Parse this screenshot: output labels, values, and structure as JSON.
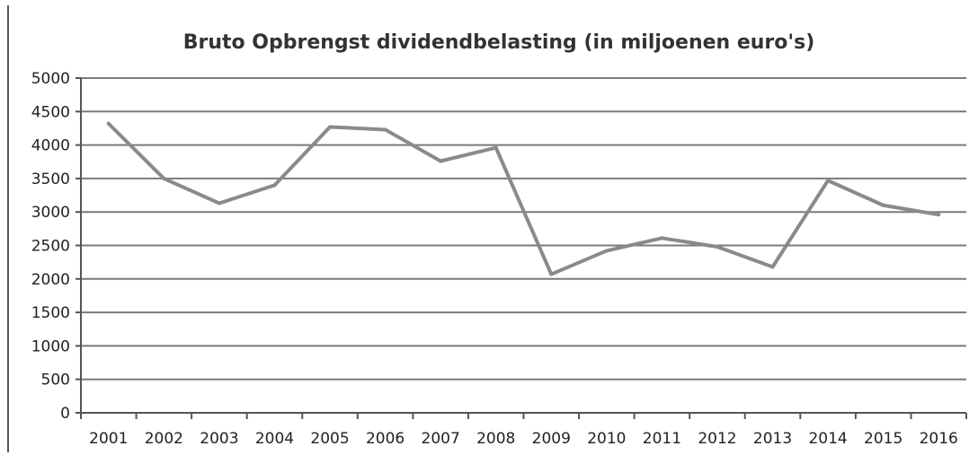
{
  "chart_data": {
    "type": "line",
    "title": "Bruto Opbrengst dividendbelasting (in miljoenen euro's)",
    "xlabel": "",
    "ylabel": "",
    "ylim": [
      0,
      5000
    ],
    "y_ticks": [
      0,
      500,
      1000,
      1500,
      2000,
      2500,
      3000,
      3500,
      4000,
      4500,
      5000
    ],
    "categories": [
      "2001",
      "2002",
      "2003",
      "2004",
      "2005",
      "2006",
      "2007",
      "2008",
      "2009",
      "2010",
      "2011",
      "2012",
      "2013",
      "2014",
      "2015",
      "2016"
    ],
    "series": [
      {
        "values": [
          4320,
          3500,
          3130,
          3400,
          4270,
          4230,
          3760,
          3960,
          2070,
          2420,
          2610,
          2480,
          2180,
          3470,
          3100,
          2960
        ]
      }
    ],
    "grid": true,
    "legend": "none",
    "line_color": "#8a8a8a",
    "grid_color": "#7a7a7a"
  }
}
